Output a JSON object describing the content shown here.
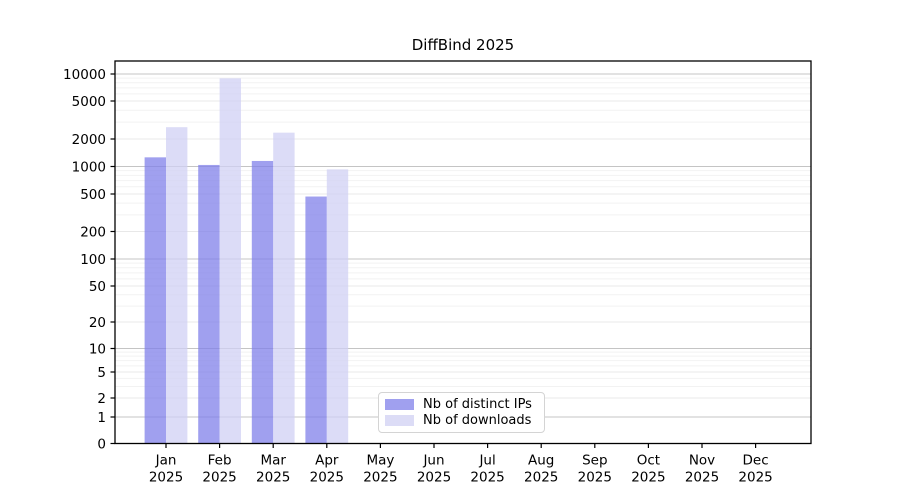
{
  "title": "DiffBind 2025",
  "legend": {
    "items": [
      {
        "label": "Nb of distinct IPs",
        "swatch_color": "#a0a0ef"
      },
      {
        "label": "Nb of downloads",
        "swatch_color": "#dcdcf6"
      }
    ]
  },
  "chart_data": {
    "type": "bar",
    "title": "DiffBind 2025",
    "x_categories": [
      {
        "month": "Jan",
        "year": "2025"
      },
      {
        "month": "Feb",
        "year": "2025"
      },
      {
        "month": "Mar",
        "year": "2025"
      },
      {
        "month": "Apr",
        "year": "2025"
      },
      {
        "month": "May",
        "year": "2025"
      },
      {
        "month": "Jun",
        "year": "2025"
      },
      {
        "month": "Jul",
        "year": "2025"
      },
      {
        "month": "Aug",
        "year": "2025"
      },
      {
        "month": "Sep",
        "year": "2025"
      },
      {
        "month": "Oct",
        "year": "2025"
      },
      {
        "month": "Nov",
        "year": "2025"
      },
      {
        "month": "Dec",
        "year": "2025"
      }
    ],
    "series": [
      {
        "name": "Nb of distinct IPs",
        "color": "#8080ea",
        "values": [
          1260,
          1040,
          1150,
          470,
          null,
          null,
          null,
          null,
          null,
          null,
          null,
          null
        ]
      },
      {
        "name": "Nb of downloads",
        "color": "#d0d0f4",
        "values": [
          2660,
          8950,
          2330,
          930,
          null,
          null,
          null,
          null,
          null,
          null,
          null,
          null
        ]
      }
    ],
    "bar_fill_opacity": 0.75,
    "yticks": [
      0,
      1,
      2,
      5,
      10,
      20,
      50,
      100,
      200,
      500,
      1000,
      2000,
      5000,
      10000
    ],
    "yscale": "symlog",
    "ylim": [
      0,
      14000
    ],
    "xlabel": "",
    "ylabel": "",
    "grid": "horizontal",
    "legend_position": "lower center inside plot"
  }
}
